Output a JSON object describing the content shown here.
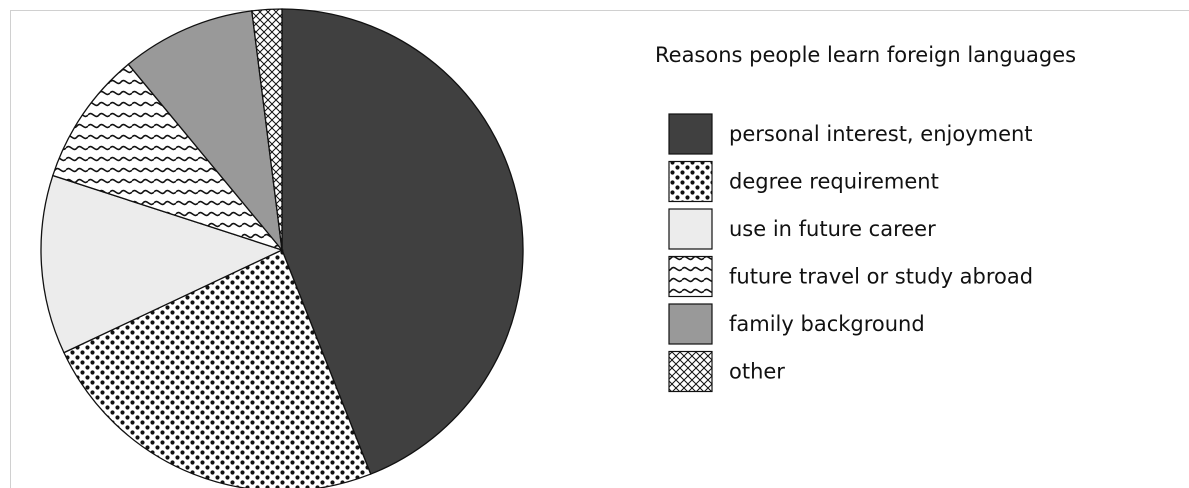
{
  "chart_data": {
    "type": "pie",
    "title": "Reasons people learn foreign languages",
    "slices": [
      {
        "label": "personal interest, enjoyment",
        "value": 44,
        "color": "#404040",
        "pattern": "solid-dark"
      },
      {
        "label": "degree requirement",
        "value": 24,
        "color": "#ffffff",
        "pattern": "dots"
      },
      {
        "label": "use in future career",
        "value": 12,
        "color": "#ececec",
        "pattern": "solid-light"
      },
      {
        "label": "future travel or study abroad",
        "value": 9,
        "color": "#ffffff",
        "pattern": "waves"
      },
      {
        "label": "family background",
        "value": 9,
        "color": "#999999",
        "pattern": "solid-gray"
      },
      {
        "label": "other",
        "value": 2,
        "color": "#ffffff",
        "pattern": "crosshatch"
      }
    ],
    "start": "top",
    "direction": "clockwise",
    "legend_position": "right"
  }
}
